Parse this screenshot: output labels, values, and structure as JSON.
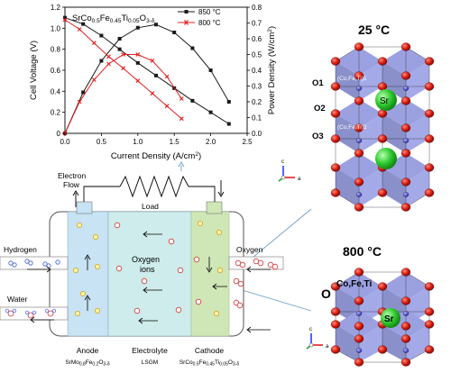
{
  "chart_data": {
    "type": "line",
    "title": "SrCo0.5Fe0.45Ti0.05O3-δ",
    "title_parts": {
      "base": "SrCo",
      "s1": "0.5",
      "m1": "Fe",
      "s2": "0.45",
      "m2": "Ti",
      "s3": "0.05",
      "m3": "O",
      "s4": "3-δ"
    },
    "xlabel": "Current Density (A/cm²)",
    "xlabel_parts": {
      "text": "Current Density (A/cm",
      "sup": "2",
      "end": ")"
    },
    "ylabel_left": "Cell Voltage (V)",
    "ylabel_right": "Power Density (W/cm²)",
    "ylabel_right_parts": {
      "text": "Power Density (W/cm",
      "sup": "2",
      "end": ")"
    },
    "xlim": [
      0,
      2.5
    ],
    "ylim_left": [
      0,
      1.2
    ],
    "ylim_right": [
      0,
      0.8
    ],
    "xticks": [
      "0.0",
      "0.5",
      "1.0",
      "1.5",
      "2.0",
      "2.5"
    ],
    "yticks_left": [
      "0",
      "0.2",
      "0.4",
      "0.6",
      "0.8",
      "1.0",
      "1.2"
    ],
    "yticks_right": [
      "0.0",
      "0.1",
      "0.2",
      "0.3",
      "0.4",
      "0.5",
      "0.6",
      "0.7",
      "0.8"
    ],
    "series": [
      {
        "name": "850 °C",
        "color": "#1a1a1a",
        "kind": "voltage",
        "x": [
          0.0,
          0.25,
          0.5,
          0.75,
          1.0,
          1.25,
          1.5,
          1.75,
          2.0,
          2.25
        ],
        "y": [
          1.1,
          1.04,
          0.93,
          0.8,
          0.67,
          0.55,
          0.43,
          0.31,
          0.2,
          0.09
        ]
      },
      {
        "name": "850 °C",
        "color": "#1a1a1a",
        "kind": "power",
        "x": [
          0.0,
          0.25,
          0.5,
          0.75,
          1.0,
          1.25,
          1.5,
          1.75,
          2.0,
          2.25
        ],
        "y": [
          0.0,
          0.26,
          0.46,
          0.6,
          0.67,
          0.69,
          0.64,
          0.54,
          0.4,
          0.2
        ]
      },
      {
        "name": "800 °C",
        "color": "#e02020",
        "kind": "voltage",
        "x": [
          0.0,
          0.2,
          0.4,
          0.6,
          0.8,
          1.0,
          1.2,
          1.4,
          1.6
        ],
        "y": [
          1.08,
          0.99,
          0.86,
          0.73,
          0.62,
          0.5,
          0.38,
          0.26,
          0.14
        ]
      },
      {
        "name": "800 °C",
        "color": "#e02020",
        "kind": "power",
        "x": [
          0.0,
          0.2,
          0.4,
          0.6,
          0.8,
          1.0,
          1.2,
          1.4,
          1.6
        ],
        "y": [
          0.0,
          0.2,
          0.34,
          0.44,
          0.5,
          0.5,
          0.46,
          0.36,
          0.22
        ]
      }
    ],
    "legend_position": "top-right"
  },
  "fuel_cell": {
    "electron_flow_line1": "Electron",
    "electron_flow_line2": "Flow",
    "load_label": "Load",
    "hydrogen_label": "Hydrogen",
    "water_label": "Water",
    "oxygen_label": "Oxygen",
    "ions_line1": "Oxygen",
    "ions_line2": "ions",
    "anode_title": "Anode",
    "anode_formula": "SrMo0.8Fe0.2O3-δ",
    "anode_parts": {
      "a": "SrMo",
      "b": "0.8",
      "c": "Fe",
      "d": "0.2",
      "e": "O",
      "f": "3-δ"
    },
    "electrolyte_title": "Electrolyte",
    "electrolyte_material": "LSGM",
    "cathode_title": "Cathode",
    "cathode_formula": "SrCo0.5Fe0.45Ti0.05O3-δ",
    "cathode_parts": {
      "a": "SrCo",
      "b": "0.5",
      "c": "Fe",
      "d": "0.45",
      "e": "Ti",
      "f": "0.05",
      "g": "O",
      "h": "3-δ"
    },
    "colors": {
      "anode": "#c7e3f4",
      "electrolyte": "#cdeceb",
      "cathode": "#cfe6b6"
    }
  },
  "crystal_top": {
    "temp": "25 °C",
    "o1": "O1",
    "o2": "O2",
    "o3": "O3",
    "site1": "(Co,Fe,Ti)1",
    "site2": "(Co,Fe,Ti)2",
    "sr": "Sr",
    "axis_c": "c",
    "axis_a": "a"
  },
  "crystal_bottom": {
    "temp": "800 °C",
    "site": "Co,Fe,Ti",
    "o": "O",
    "sr": "Sr",
    "axis_c": "c",
    "axis_a": "a"
  }
}
